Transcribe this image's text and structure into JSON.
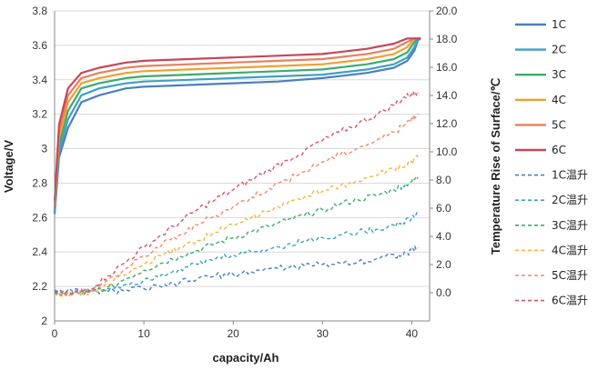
{
  "chart_data": {
    "type": "line",
    "xlabel": "capacity/Ah",
    "ylabel": "Voltage/V",
    "y2label": "Temperature Rise of Surface/℃",
    "xlim": [
      0,
      42
    ],
    "ylim": [
      2.0,
      3.8
    ],
    "y2lim": [
      -2.0,
      20.0
    ],
    "x_ticks": [
      "0",
      "10",
      "20",
      "30",
      "40"
    ],
    "y_ticks": [
      "2",
      "2.2",
      "2.4",
      "2.6",
      "2.8",
      "3",
      "3.2",
      "3.4",
      "3.6",
      "3.8"
    ],
    "y2_ticks": [
      "0.0",
      "2.0",
      "4.0",
      "6.0",
      "8.0",
      "10.0",
      "12.0",
      "14.0",
      "16.0",
      "18.0",
      "20.0"
    ],
    "grid": "horizontal",
    "legend_position": "right",
    "series": [
      {
        "name": "1C",
        "axis": "left",
        "style": "solid",
        "color": "#4a7fc1",
        "x": [
          0,
          0.5,
          1.5,
          3,
          5,
          8,
          10,
          15,
          20,
          25,
          30,
          35,
          38,
          39.5,
          40.3,
          40.7,
          41.0
        ],
        "y": [
          2.62,
          2.95,
          3.12,
          3.27,
          3.31,
          3.35,
          3.36,
          3.37,
          3.38,
          3.39,
          3.41,
          3.44,
          3.47,
          3.51,
          3.57,
          3.63,
          3.64
        ]
      },
      {
        "name": "2C",
        "axis": "left",
        "style": "solid",
        "color": "#3fa0c4",
        "x": [
          0,
          0.5,
          1.5,
          3,
          5,
          8,
          10,
          15,
          20,
          25,
          30,
          35,
          38,
          39.5,
          40.3,
          40.7,
          41.0
        ],
        "y": [
          2.63,
          2.98,
          3.17,
          3.31,
          3.35,
          3.38,
          3.39,
          3.4,
          3.41,
          3.42,
          3.43,
          3.46,
          3.49,
          3.53,
          3.59,
          3.64,
          3.64
        ]
      },
      {
        "name": "3C",
        "axis": "left",
        "style": "solid",
        "color": "#3cab6e",
        "x": [
          0,
          0.5,
          1.5,
          3,
          5,
          8,
          10,
          15,
          20,
          25,
          30,
          35,
          38,
          39.5,
          40.3,
          40.7,
          41.0
        ],
        "y": [
          2.65,
          3.02,
          3.22,
          3.35,
          3.38,
          3.41,
          3.42,
          3.43,
          3.44,
          3.45,
          3.46,
          3.49,
          3.52,
          3.56,
          3.62,
          3.64,
          3.64
        ]
      },
      {
        "name": "4C",
        "axis": "left",
        "style": "solid",
        "color": "#f0a030",
        "x": [
          0,
          0.5,
          1.5,
          3,
          5,
          8,
          10,
          15,
          20,
          25,
          30,
          35,
          38,
          39.5,
          40.3,
          40.7,
          41.0
        ],
        "y": [
          2.67,
          3.06,
          3.27,
          3.38,
          3.41,
          3.44,
          3.45,
          3.46,
          3.47,
          3.48,
          3.49,
          3.52,
          3.55,
          3.59,
          3.64,
          3.64,
          3.64
        ]
      },
      {
        "name": "5C",
        "axis": "left",
        "style": "solid",
        "color": "#e8805a",
        "x": [
          0,
          0.5,
          1.5,
          3,
          5,
          8,
          10,
          15,
          20,
          25,
          30,
          35,
          38,
          39.5,
          40.3,
          40.7,
          41.0
        ],
        "y": [
          2.68,
          3.1,
          3.31,
          3.41,
          3.44,
          3.47,
          3.48,
          3.49,
          3.5,
          3.51,
          3.52,
          3.55,
          3.58,
          3.62,
          3.64,
          3.64,
          3.64
        ]
      },
      {
        "name": "6C",
        "axis": "left",
        "style": "solid",
        "color": "#c8465a",
        "x": [
          0,
          0.5,
          1.5,
          3,
          5,
          8,
          10,
          15,
          20,
          25,
          30,
          35,
          38,
          39.5,
          40.3,
          40.7,
          41.0
        ],
        "y": [
          2.7,
          3.14,
          3.35,
          3.44,
          3.47,
          3.5,
          3.51,
          3.52,
          3.53,
          3.54,
          3.55,
          3.58,
          3.61,
          3.64,
          3.64,
          3.64,
          3.64
        ]
      },
      {
        "name": "1C温升",
        "axis": "right",
        "style": "dashed",
        "color": "#4a7fc1",
        "x": [
          0,
          2,
          4,
          6,
          8,
          10,
          12,
          14,
          16,
          18,
          20,
          22,
          24,
          26,
          28,
          30,
          32,
          34,
          36,
          38,
          39,
          40,
          40.7
        ],
        "y": [
          0.2,
          0.1,
          0.1,
          0.1,
          0.2,
          0.3,
          0.4,
          0.7,
          1.0,
          1.2,
          1.3,
          1.5,
          1.7,
          1.8,
          1.9,
          2.0,
          2.1,
          2.2,
          2.4,
          2.7,
          2.6,
          3.0,
          3.2
        ]
      },
      {
        "name": "2C温升",
        "axis": "right",
        "style": "dashed",
        "color": "#3fa0c4",
        "x": [
          0,
          2,
          4,
          6,
          8,
          10,
          12,
          14,
          16,
          18,
          20,
          22,
          24,
          26,
          28,
          30,
          32,
          34,
          36,
          38,
          39,
          40,
          40.7
        ],
        "y": [
          0.1,
          0.0,
          0.1,
          0.3,
          0.6,
          0.9,
          1.3,
          1.7,
          2.0,
          2.4,
          2.7,
          2.9,
          3.1,
          3.4,
          3.7,
          3.9,
          4.1,
          4.3,
          4.5,
          4.8,
          5.0,
          5.3,
          5.6
        ]
      },
      {
        "name": "3C温升",
        "axis": "right",
        "style": "dashed",
        "color": "#3cab6e",
        "x": [
          0,
          2,
          4,
          6,
          8,
          10,
          12,
          14,
          16,
          18,
          20,
          22,
          24,
          26,
          28,
          30,
          32,
          34,
          36,
          38,
          39,
          40,
          40.7
        ],
        "y": [
          0.0,
          -0.1,
          0.0,
          0.4,
          1.0,
          1.6,
          2.1,
          2.6,
          3.0,
          3.5,
          3.9,
          4.3,
          4.7,
          5.1,
          5.5,
          5.9,
          6.3,
          6.6,
          6.9,
          7.3,
          7.6,
          7.9,
          8.2
        ]
      },
      {
        "name": "4C温升",
        "axis": "right",
        "style": "dashed",
        "color": "#f5b342",
        "x": [
          0,
          2,
          4,
          6,
          8,
          10,
          12,
          14,
          16,
          18,
          20,
          22,
          24,
          26,
          28,
          30,
          32,
          34,
          36,
          38,
          39,
          40,
          40.7
        ],
        "y": [
          0.0,
          -0.1,
          0.0,
          0.6,
          1.3,
          2.0,
          2.6,
          3.2,
          3.7,
          4.3,
          4.8,
          5.3,
          5.8,
          6.3,
          6.8,
          7.2,
          7.6,
          7.9,
          8.3,
          8.8,
          8.9,
          9.3,
          9.6
        ]
      },
      {
        "name": "5C温升",
        "axis": "right",
        "style": "dashed",
        "color": "#f08a6a",
        "x": [
          0,
          2,
          4,
          6,
          8,
          10,
          12,
          14,
          16,
          18,
          20,
          22,
          24,
          26,
          28,
          30,
          32,
          34,
          36,
          38,
          39,
          40,
          40.7
        ],
        "y": [
          0.0,
          -0.1,
          0.2,
          0.9,
          1.7,
          2.6,
          3.4,
          4.1,
          4.8,
          5.5,
          6.1,
          6.8,
          7.4,
          8.0,
          8.6,
          9.3,
          9.8,
          10.3,
          10.8,
          11.4,
          11.8,
          12.4,
          12.7
        ]
      },
      {
        "name": "6C温升",
        "axis": "right",
        "style": "dashed",
        "color": "#d85468",
        "x": [
          0,
          2,
          4,
          6,
          8,
          10,
          12,
          14,
          16,
          18,
          20,
          22,
          24,
          26,
          28,
          30,
          32,
          34,
          36,
          38,
          39,
          40,
          40.7
        ],
        "y": [
          0.0,
          -0.1,
          0.3,
          1.2,
          2.2,
          3.2,
          4.1,
          5.0,
          5.9,
          6.6,
          7.3,
          8.0,
          8.7,
          9.4,
          10.1,
          10.8,
          11.4,
          12.0,
          12.6,
          13.3,
          13.8,
          14.1,
          14.2
        ]
      }
    ]
  }
}
